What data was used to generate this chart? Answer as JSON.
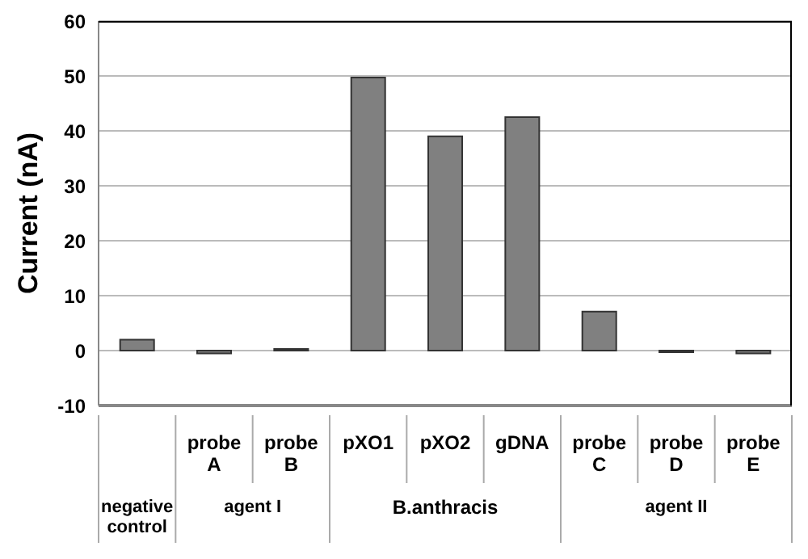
{
  "chart_data": {
    "type": "bar",
    "ylabel": "Current (nA)",
    "categories": [
      null,
      "probe A",
      "probe B",
      "pXO1",
      "pXO2",
      "gDNA",
      "probe C",
      "probe D",
      "probe E"
    ],
    "values": [
      2,
      -0.5,
      0.3,
      49.7,
      39,
      42.5,
      7.1,
      -0.3,
      -0.5
    ],
    "color": "#808080",
    "ylim": [
      -10,
      60
    ],
    "yticks": [
      -10,
      0,
      10,
      20,
      30,
      40,
      50,
      60
    ],
    "grid": "y",
    "annotations": [
      "negative control",
      "agent I",
      "B.anthracis",
      "agent II"
    ]
  }
}
